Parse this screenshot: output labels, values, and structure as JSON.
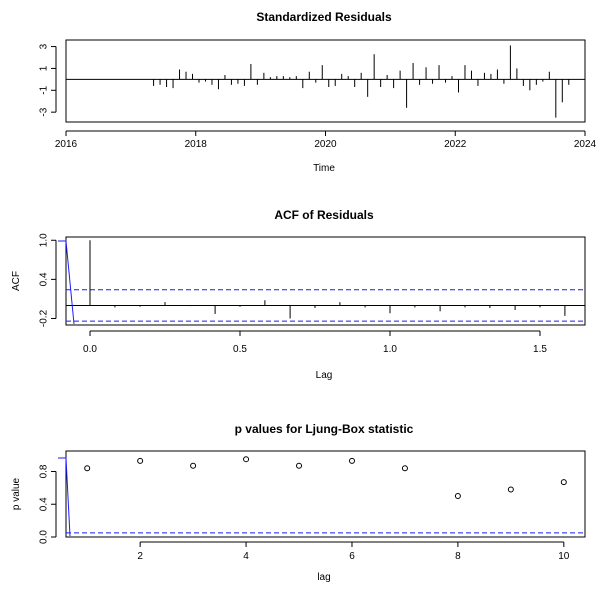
{
  "chart_data": [
    {
      "type": "bar",
      "title": "Standardized Residuals",
      "xlabel": "Time",
      "ylabel": "",
      "xlim": [
        2016,
        2024
      ],
      "ylim": [
        -3.9,
        3.6
      ],
      "xticks": [
        2016,
        2018,
        2020,
        2022,
        2024
      ],
      "yticks": [
        -3,
        -1,
        1,
        3
      ],
      "series": [
        {
          "x": [
            2017.35,
            2017.45,
            2017.55,
            2017.65,
            2017.75,
            2017.85,
            2017.95,
            2018.05,
            2018.15,
            2018.25,
            2018.35,
            2018.45,
            2018.55,
            2018.65,
            2018.75,
            2018.85,
            2018.95,
            2019.05,
            2019.15,
            2019.25,
            2019.35,
            2019.45,
            2019.55,
            2019.65,
            2019.75,
            2019.85,
            2019.95,
            2020.05,
            2020.15,
            2020.25,
            2020.35,
            2020.45,
            2020.55,
            2020.65,
            2020.75,
            2020.85,
            2020.95,
            2021.05,
            2021.15,
            2021.25,
            2021.35,
            2021.45,
            2021.55,
            2021.65,
            2021.75,
            2021.85,
            2021.95,
            2022.05,
            2022.15,
            2022.25,
            2022.35,
            2022.45,
            2022.55,
            2022.65,
            2022.75,
            2022.85,
            2022.95,
            2023.05,
            2023.15,
            2023.25,
            2023.35,
            2023.45,
            2023.55,
            2023.65,
            2023.75
          ],
          "values": [
            -0.6,
            -0.5,
            -0.7,
            -0.8,
            0.9,
            0.7,
            0.5,
            -0.3,
            -0.2,
            -0.5,
            -0.9,
            0.4,
            -0.5,
            -0.4,
            -0.6,
            1.4,
            -0.5,
            0.6,
            0.2,
            0.3,
            0.3,
            0.2,
            0.3,
            -0.8,
            0.7,
            -0.3,
            1.3,
            -0.7,
            -0.6,
            0.5,
            0.3,
            -0.7,
            0.6,
            -1.6,
            2.3,
            -0.7,
            0.4,
            -0.8,
            0.8,
            -2.6,
            1.5,
            -0.5,
            1.1,
            -0.4,
            1.3,
            -0.3,
            0.3,
            -1.2,
            1.3,
            0.8,
            -0.6,
            0.6,
            0.5,
            0.9,
            -0.4,
            3.1,
            1.0,
            -0.6,
            -1.0,
            -0.5,
            -0.2,
            0.7,
            -3.5,
            -2.1,
            -0.5
          ]
        }
      ]
    },
    {
      "type": "bar",
      "title": "ACF of Residuals",
      "xlabel": "Lag",
      "ylabel": "ACF",
      "xlim": [
        -0.08,
        1.65
      ],
      "ylim": [
        -0.3,
        1.05
      ],
      "xticks": [
        0.0,
        0.5,
        1.0,
        1.5
      ],
      "xtick_labels": [
        "0.0",
        "0.5",
        "1.0",
        "1.5"
      ],
      "yticks": [
        -0.2,
        0.4,
        1.0
      ],
      "ytick_labels": [
        "-0.2",
        "0.4",
        "1.0"
      ],
      "confidence_bounds": [
        0.24,
        -0.24
      ],
      "series": [
        {
          "x": [
            0.0,
            0.083,
            0.167,
            0.25,
            0.333,
            0.417,
            0.5,
            0.583,
            0.667,
            0.75,
            0.833,
            0.917,
            1.0,
            1.083,
            1.167,
            1.25,
            1.333,
            1.417,
            1.5,
            1.583
          ],
          "values": [
            1.0,
            -0.03,
            -0.02,
            0.05,
            -0.01,
            -0.13,
            -0.02,
            0.08,
            -0.2,
            -0.04,
            0.05,
            -0.03,
            -0.12,
            -0.03,
            -0.09,
            -0.03,
            -0.04,
            -0.07,
            -0.03,
            -0.16
          ]
        }
      ]
    },
    {
      "type": "scatter",
      "title": "p values for Ljung-Box statistic",
      "xlabel": "lag",
      "ylabel": "p value",
      "xlim": [
        0.6,
        10.4
      ],
      "ylim": [
        0.0,
        1.05
      ],
      "xticks": [
        2,
        4,
        6,
        8,
        10
      ],
      "yticks": [
        0.0,
        0.4,
        0.8
      ],
      "ytick_labels": [
        "0.0",
        "0.4",
        "0.8"
      ],
      "threshold": 0.05,
      "series": [
        {
          "x": [
            1,
            2,
            3,
            4,
            5,
            6,
            7,
            8,
            9,
            10
          ],
          "values": [
            0.84,
            0.93,
            0.87,
            0.95,
            0.87,
            0.93,
            0.84,
            0.5,
            0.58,
            0.67
          ]
        }
      ]
    }
  ]
}
